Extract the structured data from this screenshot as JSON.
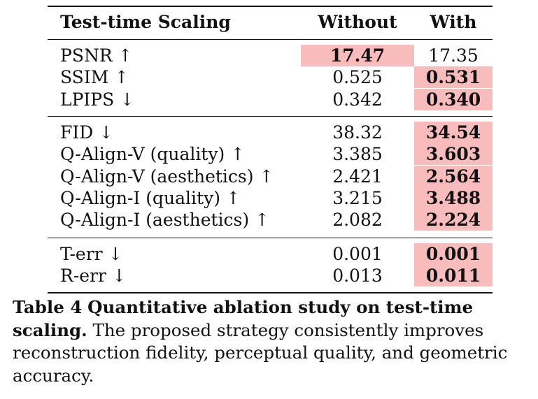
{
  "table": {
    "headers": {
      "metric": "Test-time Scaling",
      "without": "Without",
      "with": "With"
    },
    "groups": [
      {
        "rows": [
          {
            "metric": "PSNR ↑",
            "without": "17.47",
            "with": "17.35",
            "best": "without"
          },
          {
            "metric": "SSIM ↑",
            "without": "0.525",
            "with": "0.531",
            "best": "with"
          },
          {
            "metric": "LPIPS ↓",
            "without": "0.342",
            "with": "0.340",
            "best": "with"
          }
        ]
      },
      {
        "rows": [
          {
            "metric": "FID ↓",
            "without": "38.32",
            "with": "34.54",
            "best": "with"
          },
          {
            "metric": "Q-Align-V (quality) ↑",
            "without": "3.385",
            "with": "3.603",
            "best": "with"
          },
          {
            "metric": "Q-Align-V (aesthetics) ↑",
            "without": "2.421",
            "with": "2.564",
            "best": "with"
          },
          {
            "metric": "Q-Align-I (quality) ↑",
            "without": "3.215",
            "with": "3.488",
            "best": "with"
          },
          {
            "metric": "Q-Align-I (aesthetics) ↑",
            "without": "2.082",
            "with": "2.224",
            "best": "with"
          }
        ]
      },
      {
        "rows": [
          {
            "metric": "T-err ↓",
            "without": "0.001",
            "with": "0.001",
            "best": "with"
          },
          {
            "metric": "R-err ↓",
            "without": "0.013",
            "with": "0.011",
            "best": "with"
          }
        ]
      }
    ],
    "highlight_color": "#f8bcbc"
  },
  "caption": {
    "label": "Table 4",
    "title": "Quantitative ablation study on test-time scaling.",
    "text": "The proposed strategy consistently improves reconstruction fidelity, perceptual quality, and geometric accuracy."
  }
}
